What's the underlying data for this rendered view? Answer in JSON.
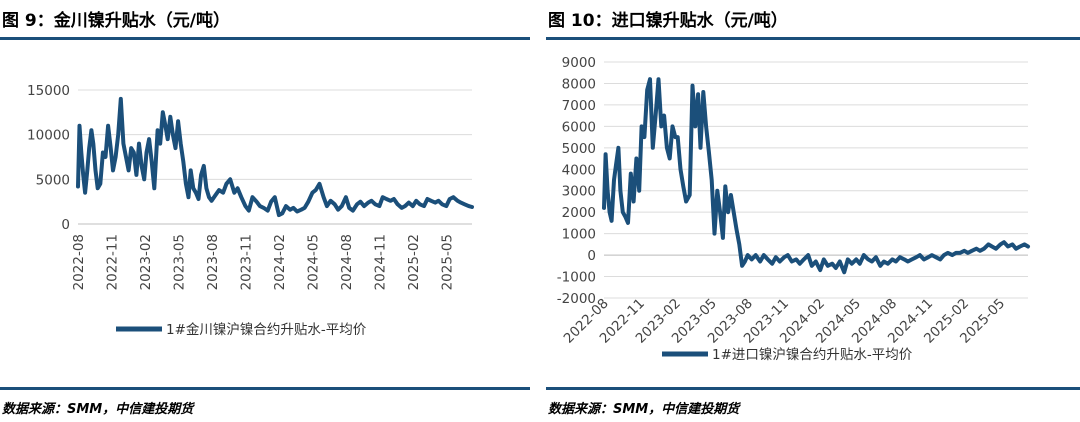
{
  "charts": {
    "left": {
      "title": "图 9：金川镍升贴水（元/吨）",
      "source": "数据来源：SMM，中信建投期货",
      "accent_color": "#1b4f7a"
    },
    "right": {
      "title": "图 10：进口镍升贴水（元/吨）",
      "source": "数据来源：SMM，中信建投期货",
      "accent_color": "#1b4f7a"
    }
  },
  "chart_data": [
    {
      "type": "line",
      "title": "图 9：金川镍升贴水（元/吨）",
      "xlabel": "",
      "ylabel": "",
      "ylim": [
        0,
        15000
      ],
      "yticks": [
        0,
        5000,
        10000,
        15000
      ],
      "xticks": [
        "2022-08",
        "2022-11",
        "2023-02",
        "2023-05",
        "2023-08",
        "2023-11",
        "2024-02",
        "2024-05",
        "2024-08",
        "2024-11",
        "2025-02",
        "2025-05"
      ],
      "grid": "horizontal",
      "legend": "bottom",
      "color": "#1b4f7a",
      "series": [
        {
          "name": "1#金川镍沪镍合约升贴水-平均价",
          "x": [
            "2022-08-01",
            "2022-08-05",
            "2022-08-10",
            "2022-08-15",
            "2022-08-20",
            "2022-08-26",
            "2022-09-01",
            "2022-09-07",
            "2022-09-12",
            "2022-09-18",
            "2022-09-24",
            "2022-10-01",
            "2022-10-08",
            "2022-10-15",
            "2022-10-22",
            "2022-10-29",
            "2022-11-05",
            "2022-11-12",
            "2022-11-19",
            "2022-11-26",
            "2022-12-03",
            "2022-12-10",
            "2022-12-17",
            "2022-12-24",
            "2022-12-31",
            "2023-01-08",
            "2023-01-15",
            "2023-01-22",
            "2023-01-29",
            "2023-02-05",
            "2023-02-12",
            "2023-02-19",
            "2023-02-26",
            "2023-03-05",
            "2023-03-12",
            "2023-03-19",
            "2023-03-26",
            "2023-04-02",
            "2023-04-09",
            "2023-04-16",
            "2023-04-23",
            "2023-04-30",
            "2023-05-07",
            "2023-05-14",
            "2023-05-21",
            "2023-05-28",
            "2023-06-04",
            "2023-06-11",
            "2023-06-18",
            "2023-06-25",
            "2023-07-02",
            "2023-07-09",
            "2023-07-16",
            "2023-07-23",
            "2023-07-30",
            "2023-08-10",
            "2023-08-20",
            "2023-09-01",
            "2023-09-10",
            "2023-09-20",
            "2023-10-01",
            "2023-10-10",
            "2023-10-20",
            "2023-11-01",
            "2023-11-10",
            "2023-11-20",
            "2023-12-01",
            "2023-12-10",
            "2023-12-20",
            "2024-01-01",
            "2024-01-10",
            "2024-01-20",
            "2024-02-01",
            "2024-02-10",
            "2024-02-20",
            "2024-03-01",
            "2024-03-10",
            "2024-03-20",
            "2024-04-01",
            "2024-04-10",
            "2024-04-20",
            "2024-05-01",
            "2024-05-10",
            "2024-05-20",
            "2024-06-01",
            "2024-06-10",
            "2024-06-20",
            "2024-07-01",
            "2024-07-10",
            "2024-07-20",
            "2024-08-01",
            "2024-08-10",
            "2024-08-20",
            "2024-09-01",
            "2024-09-10",
            "2024-09-20",
            "2024-10-01",
            "2024-10-10",
            "2024-10-20",
            "2024-11-01",
            "2024-11-10",
            "2024-11-20",
            "2024-12-01",
            "2024-12-10",
            "2024-12-20",
            "2025-01-01",
            "2025-01-10",
            "2025-01-20",
            "2025-02-01",
            "2025-02-10",
            "2025-02-20",
            "2025-03-01",
            "2025-03-10",
            "2025-03-20",
            "2025-04-01",
            "2025-04-10",
            "2025-04-20",
            "2025-05-01",
            "2025-05-10",
            "2025-05-20",
            "2025-06-01",
            "2025-06-10",
            "2025-06-20",
            "2025-07-01",
            "2025-07-10"
          ],
          "y": [
            4200,
            11000,
            8000,
            5500,
            3500,
            6000,
            8500,
            10500,
            9000,
            6000,
            4000,
            4500,
            8000,
            7500,
            11000,
            8500,
            6000,
            7500,
            10000,
            14000,
            9000,
            7500,
            6000,
            8500,
            8000,
            5500,
            9000,
            6500,
            5000,
            8000,
            9500,
            7000,
            4000,
            10500,
            9000,
            12500,
            11000,
            9500,
            12000,
            10000,
            8500,
            11500,
            9000,
            7000,
            4500,
            3000,
            6000,
            4000,
            3500,
            2800,
            5500,
            6500,
            4000,
            3000,
            2600,
            3200,
            3800,
            3500,
            4500,
            5000,
            3500,
            4000,
            3000,
            2000,
            1500,
            3000,
            2500,
            2000,
            1800,
            1500,
            2500,
            3000,
            1000,
            1200,
            2000,
            1600,
            1800,
            1400,
            1600,
            1800,
            2500,
            3500,
            3800,
            4500,
            3000,
            2000,
            2600,
            2200,
            1600,
            2000,
            3000,
            1800,
            1500,
            2200,
            2500,
            2000,
            2400,
            2600,
            2200,
            2000,
            3000,
            2800,
            2600,
            2800,
            2200,
            1800,
            2000,
            2400,
            2000,
            2600,
            2200,
            2000,
            2800,
            2600,
            2400,
            2600,
            2200,
            2000,
            2800,
            3000,
            2600,
            2400,
            2200,
            2000,
            1900
          ]
        }
      ]
    },
    {
      "type": "line",
      "title": "图 10：进口镍升贴水（元/吨）",
      "xlabel": "",
      "ylabel": "",
      "ylim": [
        -2000,
        9000
      ],
      "yticks": [
        -2000,
        -1000,
        0,
        1000,
        2000,
        3000,
        4000,
        5000,
        6000,
        7000,
        8000,
        9000
      ],
      "xticks": [
        "2022-08",
        "2022-11",
        "2023-02",
        "2023-05",
        "2023-08",
        "2023-11",
        "2024-02",
        "2024-05",
        "2024-08",
        "2024-11",
        "2025-02",
        "2025-05"
      ],
      "grid": "horizontal",
      "legend": "bottom",
      "color": "#1b4f7a",
      "series": [
        {
          "name": "1#进口镍沪镍合约升贴水-平均价",
          "x": [
            "2022-08-01",
            "2022-08-05",
            "2022-08-10",
            "2022-08-15",
            "2022-08-20",
            "2022-08-26",
            "2022-09-01",
            "2022-09-07",
            "2022-09-12",
            "2022-09-18",
            "2022-09-24",
            "2022-10-01",
            "2022-10-08",
            "2022-10-15",
            "2022-10-22",
            "2022-10-29",
            "2022-11-05",
            "2022-11-12",
            "2022-11-19",
            "2022-11-26",
            "2022-12-03",
            "2022-12-10",
            "2022-12-17",
            "2022-12-24",
            "2022-12-31",
            "2023-01-08",
            "2023-01-15",
            "2023-01-22",
            "2023-01-29",
            "2023-02-05",
            "2023-02-12",
            "2023-02-19",
            "2023-02-26",
            "2023-03-05",
            "2023-03-12",
            "2023-03-19",
            "2023-03-26",
            "2023-04-02",
            "2023-04-09",
            "2023-04-16",
            "2023-04-23",
            "2023-04-30",
            "2023-05-07",
            "2023-05-14",
            "2023-05-21",
            "2023-05-28",
            "2023-06-04",
            "2023-06-11",
            "2023-06-18",
            "2023-06-25",
            "2023-07-02",
            "2023-07-09",
            "2023-07-16",
            "2023-07-23",
            "2023-07-30",
            "2023-08-10",
            "2023-08-20",
            "2023-09-01",
            "2023-09-10",
            "2023-09-20",
            "2023-10-01",
            "2023-10-10",
            "2023-10-20",
            "2023-11-01",
            "2023-11-10",
            "2023-11-20",
            "2023-12-01",
            "2023-12-10",
            "2023-12-20",
            "2024-01-01",
            "2024-01-10",
            "2024-01-20",
            "2024-02-01",
            "2024-02-10",
            "2024-02-20",
            "2024-03-01",
            "2024-03-10",
            "2024-03-20",
            "2024-04-01",
            "2024-04-10",
            "2024-04-20",
            "2024-05-01",
            "2024-05-10",
            "2024-05-20",
            "2024-06-01",
            "2024-06-10",
            "2024-06-20",
            "2024-07-01",
            "2024-07-10",
            "2024-07-20",
            "2024-08-01",
            "2024-08-10",
            "2024-08-20",
            "2024-09-01",
            "2024-09-10",
            "2024-09-20",
            "2024-10-01",
            "2024-10-10",
            "2024-10-20",
            "2024-11-01",
            "2024-11-10",
            "2024-11-20",
            "2024-12-01",
            "2024-12-10",
            "2024-12-20",
            "2025-01-01",
            "2025-01-10",
            "2025-01-20",
            "2025-02-01",
            "2025-02-10",
            "2025-02-20",
            "2025-03-01",
            "2025-03-10",
            "2025-03-20",
            "2025-04-01",
            "2025-04-10",
            "2025-04-20",
            "2025-05-01",
            "2025-05-10",
            "2025-05-20",
            "2025-06-01",
            "2025-06-10",
            "2025-06-20",
            "2025-07-01",
            "2025-07-10"
          ],
          "y": [
            2200,
            4700,
            3000,
            2000,
            1600,
            3500,
            4200,
            5000,
            3000,
            2000,
            1800,
            1500,
            3800,
            2500,
            4500,
            3000,
            6000,
            5500,
            7700,
            8200,
            5000,
            6500,
            8200,
            6000,
            6500,
            5000,
            4500,
            6000,
            5500,
            5500,
            4000,
            3200,
            2500,
            2800,
            7900,
            6000,
            7500,
            5000,
            7600,
            6000,
            4800,
            3500,
            1000,
            3000,
            2000,
            800,
            3200,
            2000,
            2800,
            2000,
            1200,
            500,
            -500,
            -300,
            0,
            -200,
            0,
            -300,
            0,
            -200,
            -400,
            -100,
            -300,
            -100,
            0,
            -300,
            -200,
            -400,
            -200,
            0,
            -500,
            -300,
            -700,
            -200,
            -500,
            -400,
            -600,
            -300,
            -800,
            -200,
            -400,
            -200,
            -400,
            0,
            -200,
            -300,
            -100,
            -500,
            -300,
            -400,
            -200,
            -300,
            -100,
            -200,
            -300,
            -200,
            -100,
            0,
            -200,
            -100,
            0,
            -100,
            -200,
            0,
            100,
            0,
            100,
            100,
            200,
            100,
            200,
            300,
            200,
            300,
            500,
            400,
            300,
            500,
            600,
            400,
            500,
            300,
            400,
            500,
            400
          ]
        }
      ]
    }
  ]
}
